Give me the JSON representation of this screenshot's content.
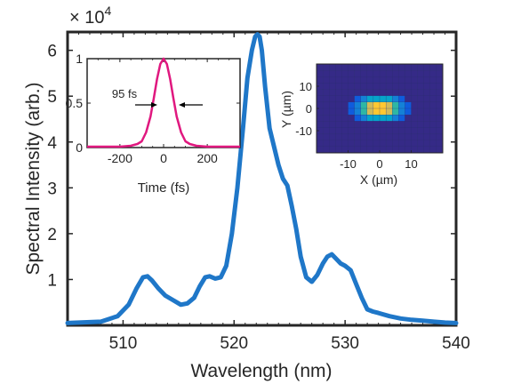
{
  "chart_data": [
    {
      "type": "line",
      "role": "main",
      "xlabel": "Wavelength (nm)",
      "ylabel": "Spectral Intensity (arb.)",
      "y_multiplier_label": "× 10",
      "y_multiplier_exponent": "4",
      "xlim": [
        505,
        540
      ],
      "ylim": [
        0,
        6.4
      ],
      "xticks": [
        510,
        520,
        530,
        540
      ],
      "yticks": [
        1,
        2,
        3,
        4,
        5,
        6
      ],
      "grid": false,
      "line_color": "#1f77c8",
      "series": [
        {
          "x": [
            505,
            508,
            509.5,
            510.5,
            511.2,
            511.8,
            512.2,
            512.6,
            513.2,
            513.8,
            514.5,
            515.2,
            515.8,
            516.4,
            516.9,
            517.4,
            517.8,
            518.3,
            518.8,
            519.3,
            519.8,
            520.3,
            520.8,
            521.2,
            521.6,
            521.9,
            522.1,
            522.3,
            522.5,
            522.8,
            523.2,
            523.6,
            524.0,
            524.4,
            524.8,
            525.2,
            525.6,
            526.0,
            526.5,
            527.0,
            527.5,
            528.0,
            528.4,
            528.8,
            529.2,
            529.6,
            530.0,
            530.5,
            531.0,
            531.5,
            532.0,
            532.5,
            533.0,
            534.0,
            535.0,
            536.0,
            537.0,
            538.0,
            539.0,
            540.0
          ],
          "y": [
            0.05,
            0.08,
            0.2,
            0.45,
            0.8,
            1.05,
            1.07,
            0.98,
            0.8,
            0.65,
            0.55,
            0.45,
            0.48,
            0.6,
            0.85,
            1.05,
            1.07,
            1.02,
            1.05,
            1.3,
            2.0,
            3.0,
            4.3,
            5.4,
            6.0,
            6.3,
            6.35,
            6.3,
            6.0,
            5.2,
            4.3,
            3.9,
            3.5,
            3.2,
            3.05,
            2.6,
            2.1,
            1.5,
            1.05,
            0.95,
            1.1,
            1.35,
            1.5,
            1.55,
            1.45,
            1.35,
            1.3,
            1.2,
            0.9,
            0.6,
            0.35,
            0.3,
            0.27,
            0.2,
            0.15,
            0.12,
            0.1,
            0.08,
            0.06,
            0.05
          ]
        }
      ]
    },
    {
      "type": "line",
      "role": "inset-time",
      "xlabel": "Time (fs)",
      "ylabel": "",
      "xlim": [
        -350,
        350
      ],
      "ylim": [
        0,
        1
      ],
      "xticks": [
        -200,
        0,
        200
      ],
      "yticks": [
        0,
        0.5,
        1
      ],
      "annotation": "95 fs",
      "fwhm_fs": 95,
      "grid": false,
      "line_color": "#e0187f",
      "series": [
        {
          "x": [
            -350,
            -300,
            -250,
            -200,
            -150,
            -120,
            -100,
            -80,
            -60,
            -45,
            -30,
            -15,
            0,
            15,
            30,
            45,
            60,
            80,
            100,
            120,
            150,
            200,
            250,
            300,
            350
          ],
          "y": [
            0.01,
            0.01,
            0.01,
            0.01,
            0.02,
            0.04,
            0.07,
            0.17,
            0.35,
            0.55,
            0.77,
            0.94,
            1.0,
            0.94,
            0.77,
            0.55,
            0.35,
            0.17,
            0.07,
            0.04,
            0.02,
            0.01,
            0.01,
            0.01,
            0.01
          ]
        }
      ]
    },
    {
      "type": "heatmap",
      "role": "inset-beam",
      "xlabel": "X (µm)",
      "ylabel": "Y (µm)",
      "xlim": [
        -20,
        20
      ],
      "ylim": [
        -20,
        20
      ],
      "xticks": [
        -10,
        0,
        10
      ],
      "yticks": [
        -10,
        0,
        10
      ],
      "center": [
        0,
        0
      ],
      "sigma_x_um": 4.5,
      "sigma_y_um": 3.0,
      "colormap": [
        "#352a87",
        "#0f5cdd",
        "#1481d6",
        "#06a4ca",
        "#2eb7a4",
        "#87bf77",
        "#d1bb59",
        "#fec832",
        "#f9fb0e"
      ]
    }
  ]
}
